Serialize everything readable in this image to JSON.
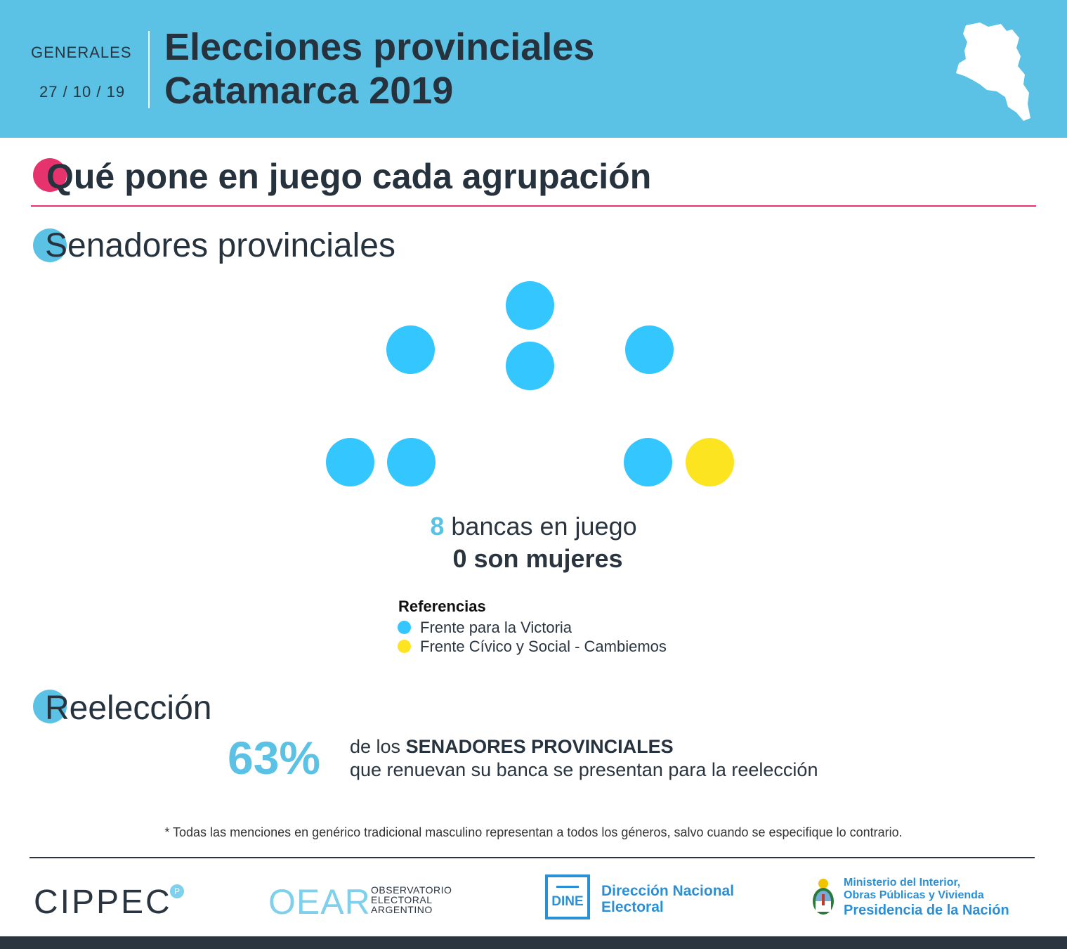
{
  "header": {
    "kicker": "GENERALES",
    "date": "27 / 10 / 19",
    "title_line1": "Elecciones provinciales",
    "title_line2": "Catamarca 2019",
    "background_color": "#5bc2e5"
  },
  "main_title": "Qué pone en juego cada agrupación",
  "section_senate": {
    "title": "Senadores provinciales",
    "seats": [
      {
        "party": "Frente para la Victoria",
        "color": "#33c6ff"
      },
      {
        "party": "Frente para la Victoria",
        "color": "#33c6ff"
      },
      {
        "party": "Frente para la Victoria",
        "color": "#33c6ff"
      },
      {
        "party": "Frente para la Victoria",
        "color": "#33c6ff"
      },
      {
        "party": "Frente para la Victoria",
        "color": "#33c6ff"
      },
      {
        "party": "Frente para la Victoria",
        "color": "#33c6ff"
      },
      {
        "party": "Frente para la Victoria",
        "color": "#33c6ff"
      },
      {
        "party": "Frente Cívico y Social - Cambiemos",
        "color": "#fde421"
      }
    ],
    "summary": {
      "count": "8",
      "seats_text": "bancas en juego",
      "women_text": "0 son mujeres"
    },
    "legend": {
      "title": "Referencias",
      "items": [
        {
          "label": "Frente para la Victoria",
          "color": "#33c6ff"
        },
        {
          "label": "Frente Cívico y Social - Cambiemos",
          "color": "#fde421"
        }
      ]
    }
  },
  "section_reelection": {
    "title": "Reelección",
    "percent": "63%",
    "text_pre": "de los",
    "text_bold": "SENADORES PROVINCIALES",
    "text_line2": "que renuevan su banca se presentan para la reelección"
  },
  "footnote": "* Todas las menciones en genérico tradicional masculino representan a todos los géneros, salvo cuando se especifique lo contrario.",
  "footer": {
    "cippec": "CIPPEC",
    "cippec_badge": "P",
    "oear": "OEAR",
    "oear_sub": [
      "OBSERVATORIO",
      "ELECTORAL",
      "ARGENTINO"
    ],
    "dine_badge": "DINE",
    "dine_line1": "Dirección Nacional",
    "dine_line2": "Electoral",
    "ministry_line1": "Ministerio del Interior,",
    "ministry_line2": "Obras Públicas y Vivienda",
    "presidency": "Presidencia de la Nación"
  },
  "colors": {
    "accent_pink": "#e6336d",
    "accent_blue": "#5bc2e5",
    "dark_text": "#26323d"
  }
}
